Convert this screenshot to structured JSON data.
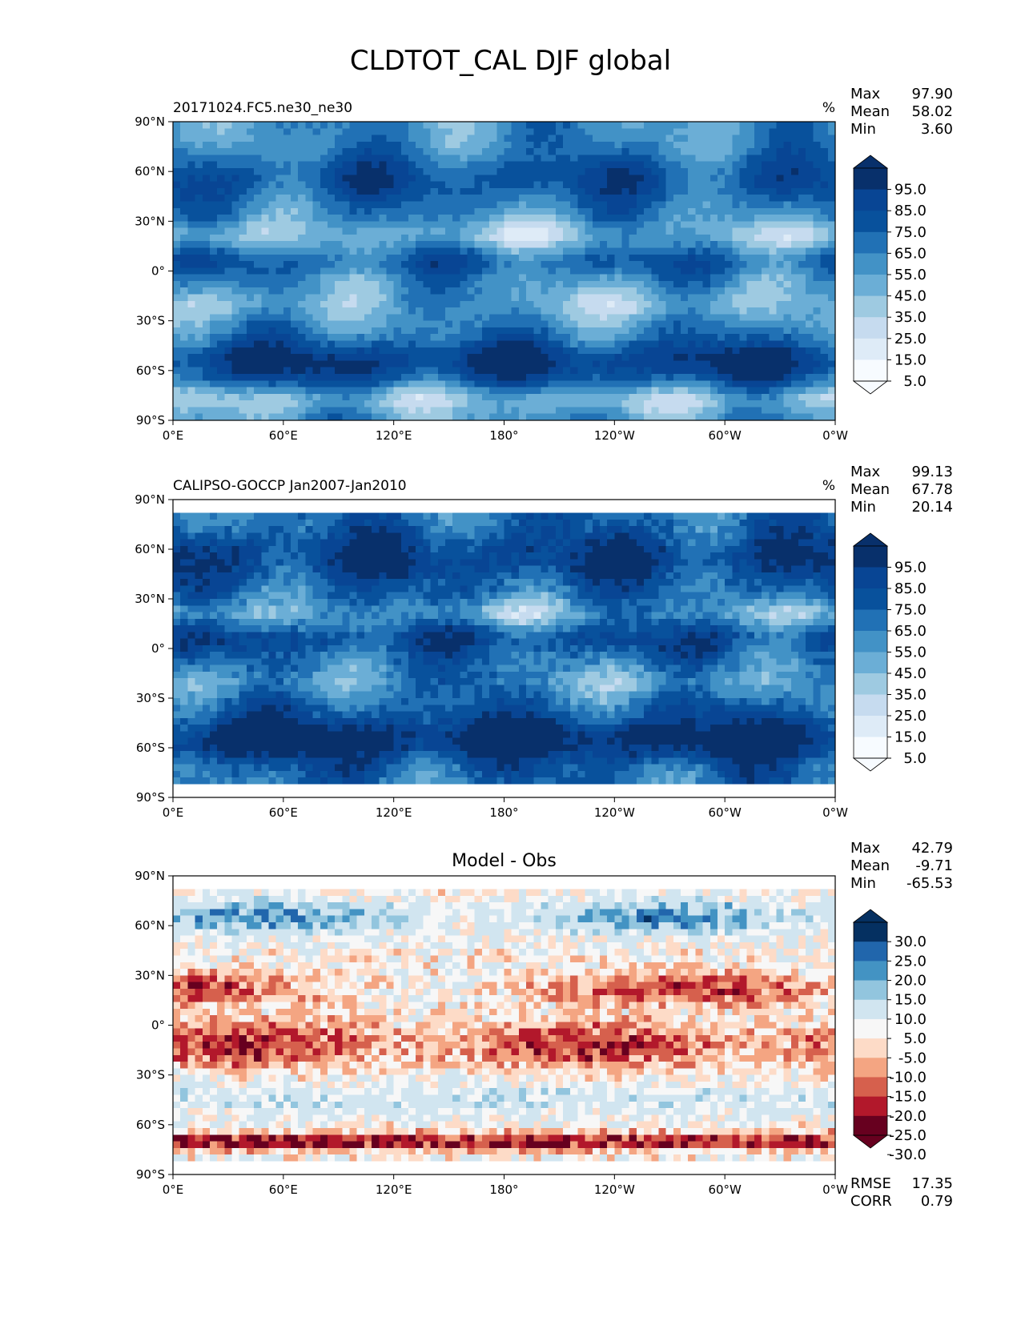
{
  "title": "CLDTOT_CAL DJF global",
  "axes": {
    "lat_ticks": [
      "90°N",
      "60°N",
      "30°N",
      "0°",
      "30°S",
      "60°S",
      "90°S"
    ],
    "lon_ticks": [
      "0°E",
      "60°E",
      "120°E",
      "180°",
      "120°W",
      "60°W",
      "0°W"
    ]
  },
  "stat_labels": {
    "max": "Max",
    "mean": "Mean",
    "min": "Min",
    "rmse": "RMSE",
    "corr": "CORR"
  },
  "colors": {
    "blues": [
      "#f7fbff",
      "#deebf7",
      "#c6dbef",
      "#9ecae1",
      "#6baed6",
      "#4292c6",
      "#2171b5",
      "#08519c",
      "#084594",
      "#08306b"
    ],
    "diff": [
      "#67001f",
      "#b2182b",
      "#d6604d",
      "#f4a582",
      "#fddbc7",
      "#f7f7f7",
      "#d1e5f0",
      "#92c5de",
      "#4393c3",
      "#2166ac",
      "#053061"
    ]
  },
  "chart_data": [
    {
      "type": "heatmap",
      "panel": "test",
      "title": "20171024.FC5.ne30_ne30",
      "units": "%",
      "stats": {
        "max": "97.90",
        "mean": "58.02",
        "min": "3.60"
      },
      "colorbar_ticks": [
        "95.0",
        "85.0",
        "75.0",
        "65.0",
        "55.0",
        "45.0",
        "35.0",
        "25.0",
        "15.0",
        "5.0"
      ],
      "lat_range": [
        -90,
        90
      ],
      "lon_range": [
        0,
        360
      ]
    },
    {
      "type": "heatmap",
      "panel": "reference",
      "title": "CALIPSO-GOCCP Jan2007-Jan2010",
      "units": "%",
      "stats": {
        "max": "99.13",
        "mean": "67.78",
        "min": "20.14"
      },
      "colorbar_ticks": [
        "95.0",
        "85.0",
        "75.0",
        "65.0",
        "55.0",
        "45.0",
        "35.0",
        "25.0",
        "15.0",
        "5.0"
      ],
      "lat_range": [
        -90,
        90
      ],
      "lon_range": [
        0,
        360
      ]
    },
    {
      "type": "heatmap",
      "panel": "difference",
      "title": "Model - Obs",
      "stats": {
        "max": "42.79",
        "mean": "-9.71",
        "min": "-65.53"
      },
      "metrics": {
        "rmse": "17.35",
        "corr": "0.79"
      },
      "colorbar_ticks": [
        "30.0",
        "25.0",
        "20.0",
        "15.0",
        "10.0",
        "5.0",
        "-5.0",
        "-10.0",
        "-15.0",
        "-20.0",
        "-25.0",
        "-30.0"
      ],
      "lat_range": [
        -90,
        90
      ],
      "lon_range": [
        0,
        360
      ]
    }
  ]
}
